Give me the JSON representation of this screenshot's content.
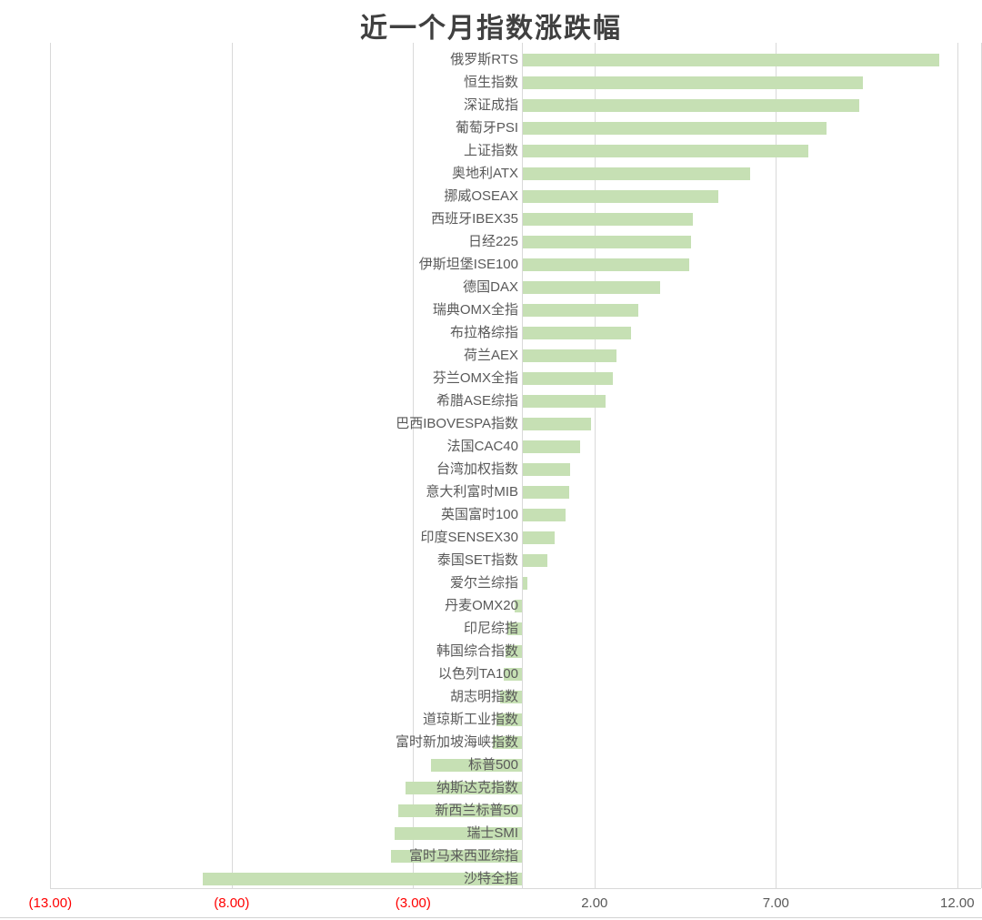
{
  "chart_data": {
    "type": "bar",
    "orientation": "horizontal",
    "title": "近一个月指数涨跌幅",
    "xlabel": "",
    "ylabel": "",
    "xlim": [
      -13,
      12.65
    ],
    "grid": true,
    "legend": false,
    "categories": [
      "俄罗斯RTS",
      "恒生指数",
      "深证成指",
      "葡萄牙PSI",
      "上证指数",
      "奥地利ATX",
      "挪威OSEAX",
      "西班牙IBEX35",
      "日经225",
      "伊斯坦堡ISE100",
      "德国DAX",
      "瑞典OMX全指",
      "布拉格综指",
      "荷兰AEX",
      "芬兰OMX全指",
      "希腊ASE综指",
      "巴西IBOVESPA指数",
      "法国CAC40",
      "台湾加权指数",
      "意大利富时MIB",
      "英国富时100",
      "印度SENSEX30",
      "泰国SET指数",
      "爱尔兰综指",
      "丹麦OMX20",
      "印尼综指",
      "韩国综合指数",
      "以色列TA100",
      "胡志明指数",
      "道琼斯工业指数",
      "富时新加坡海峡指数",
      "标普500",
      "纳斯达克指数",
      "新西兰标普50",
      "瑞士SMI",
      "富时马来西亚综指",
      "沙特全指"
    ],
    "values": [
      11.5,
      9.4,
      9.3,
      8.4,
      7.9,
      6.3,
      5.4,
      4.7,
      4.65,
      4.6,
      3.8,
      3.2,
      3.0,
      2.6,
      2.5,
      2.3,
      1.9,
      1.6,
      1.32,
      1.3,
      1.2,
      0.9,
      0.7,
      0.15,
      -0.2,
      -0.4,
      -0.45,
      -0.5,
      -0.6,
      -0.7,
      -0.8,
      -2.5,
      -3.2,
      -3.4,
      -3.5,
      -3.6,
      -8.8
    ],
    "x_ticks": [
      {
        "value": -13,
        "label": "(13.00)",
        "negative": true
      },
      {
        "value": -8,
        "label": "(8.00)",
        "negative": true
      },
      {
        "value": -3,
        "label": "(3.00)",
        "negative": true
      },
      {
        "value": 2,
        "label": "2.00",
        "negative": false
      },
      {
        "value": 7,
        "label": "7.00",
        "negative": false
      },
      {
        "value": 12,
        "label": "12.00",
        "negative": false
      }
    ]
  },
  "colors": {
    "bar_fill": "#c6e0b4",
    "gridline": "#d9d9d9",
    "axis_line": "#d9d9d9",
    "label_text": "#595959",
    "tick_positive": "#595959",
    "tick_negative": "#ff0000",
    "title_text": "#404040",
    "background": "#ffffff"
  }
}
